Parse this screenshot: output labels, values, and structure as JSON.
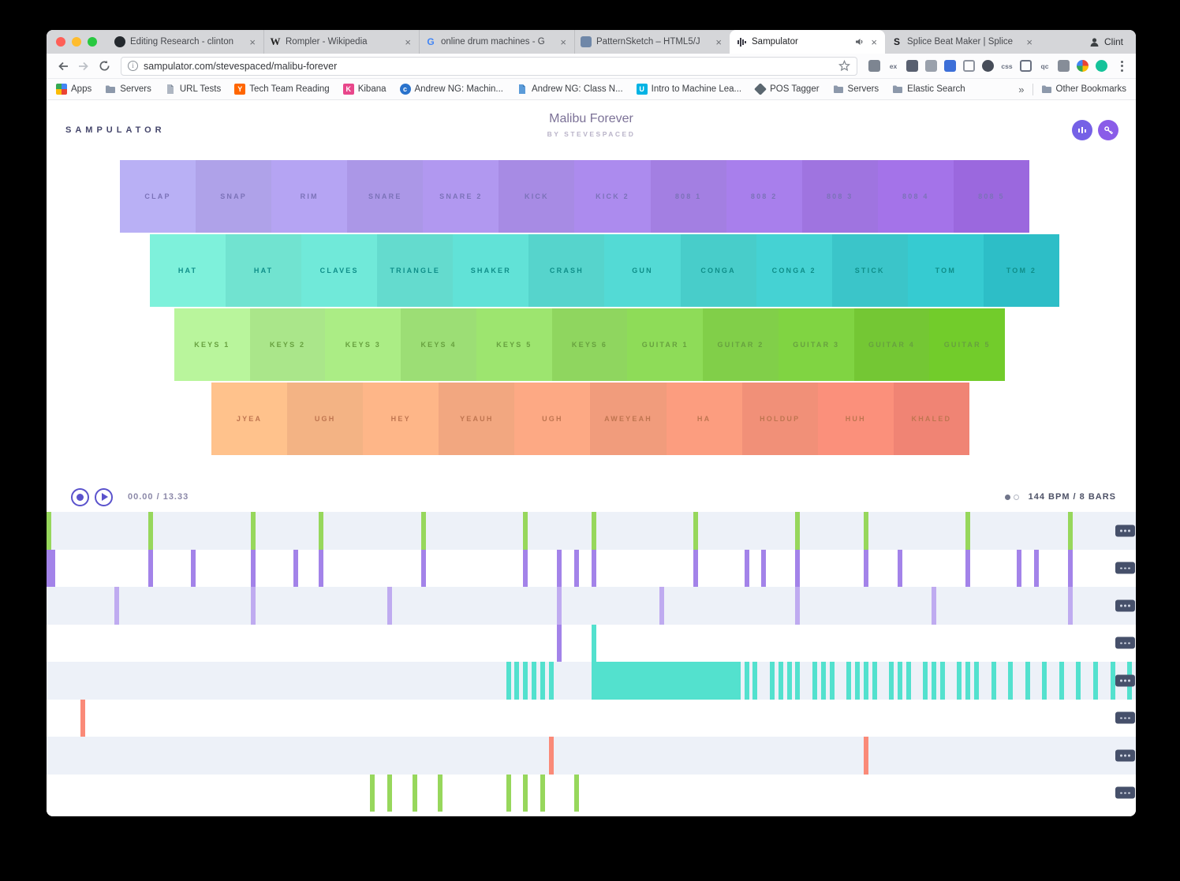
{
  "browser": {
    "profile_name": "Clint",
    "url": "sampulator.com/stevespaced/malibu-forever",
    "traffic_lights": {
      "close": "#ff5f57",
      "minimize": "#febc2e",
      "zoom": "#28c840"
    },
    "tabs": [
      {
        "title": "Editing Research - clinton",
        "favicon": "github"
      },
      {
        "title": "Rompler - Wikipedia",
        "favicon": "wikipedia"
      },
      {
        "title": "online drum machines - G",
        "favicon": "google"
      },
      {
        "title": "PatternSketch – HTML5/J",
        "favicon": "patternsketch"
      },
      {
        "title": "Sampulator",
        "favicon": "waveform",
        "active": true,
        "audio": true
      },
      {
        "title": "Splice Beat Maker | Splice",
        "favicon": "splice"
      }
    ],
    "toolbar_icons": [
      {
        "name": "tag-icon",
        "shape": "square",
        "color": "#7d8591"
      },
      {
        "name": "ex-extension-icon",
        "shape": "text",
        "color": "#697080",
        "label": "ex"
      },
      {
        "name": "camera-icon",
        "shape": "square",
        "color": "#596070"
      },
      {
        "name": "swatch-icon",
        "shape": "square",
        "color": "#9aa1ac"
      },
      {
        "name": "bookmark-flag-icon",
        "shape": "square",
        "color": "#3d6fd8"
      },
      {
        "name": "dots-grid-icon",
        "shape": "outline",
        "color": "#8d939e"
      },
      {
        "name": "contrast-icon",
        "shape": "circle",
        "color": "#474d59"
      },
      {
        "name": "css-extension-icon",
        "shape": "text",
        "color": "#697080",
        "label": "css"
      },
      {
        "name": "crop-icon",
        "shape": "outline",
        "color": "#697080"
      },
      {
        "name": "qc-extension-icon",
        "shape": "text",
        "color": "#697080",
        "label": "qc"
      },
      {
        "name": "grid-extension-icon",
        "shape": "square",
        "color": "#868d98"
      },
      {
        "name": "pie-extension-icon",
        "shape": "pie",
        "color": ""
      },
      {
        "name": "grammarly-icon",
        "shape": "circle",
        "color": "#15c39a"
      }
    ],
    "bookmarks": {
      "items": [
        {
          "label": "Apps",
          "icon": "apps"
        },
        {
          "label": "Servers",
          "icon": "folder"
        },
        {
          "label": "URL Tests",
          "icon": "page"
        },
        {
          "label": "Tech Team Reading",
          "icon": "hn"
        },
        {
          "label": "Kibana",
          "icon": "kibana"
        },
        {
          "label": "Andrew NG: Machin...",
          "icon": "coursera"
        },
        {
          "label": "Andrew NG: Class N...",
          "icon": "page-blue"
        },
        {
          "label": "Intro to Machine Lea...",
          "icon": "udacity"
        },
        {
          "label": "POS Tagger",
          "icon": "diamond"
        },
        {
          "label": "Servers",
          "icon": "folder"
        },
        {
          "label": "Elastic Search",
          "icon": "folder"
        }
      ],
      "chevron": "»",
      "other_label": "Other Bookmarks"
    }
  },
  "app": {
    "logo": "SAMPULATOR",
    "title": "Malibu Forever",
    "byline": "BY STEVESPACED",
    "accent": "#5a52cc",
    "header_buttons": {
      "equalizer_bg": "#7561e6",
      "key_bg": "#8a5ce8"
    }
  },
  "pads": {
    "rows": [
      {
        "labels": [
          "CLAP",
          "SNAP",
          "RIM",
          "SNARE",
          "SNARE 2",
          "KICK",
          "KICK 2",
          "808 1",
          "808 2",
          "808 3",
          "808 4",
          "808 5"
        ],
        "color_from": "#b9b0f5",
        "color_to": "#a26de8",
        "label_color": "#7b72b8"
      },
      {
        "labels": [
          "HAT",
          "HAT",
          "CLAVES",
          "TRIANGLE",
          "SHAKER",
          "CRASH",
          "GUN",
          "CONGA",
          "CONGA 2",
          "STICK",
          "TOM",
          "TOM 2"
        ],
        "color_from": "#7ef1db",
        "color_to": "#2fc7d0",
        "label_color": "#0f8e89"
      },
      {
        "labels": [
          "KEYS 1",
          "KEYS 2",
          "KEYS 3",
          "KEYS 4",
          "KEYS 5",
          "KEYS 6",
          "GUITAR 1",
          "GUITAR 2",
          "GUITAR 3",
          "GUITAR 4",
          "GUITAR 5"
        ],
        "color_from": "#b9f59c",
        "color_to": "#72cc2b",
        "label_color": "#67a03f"
      },
      {
        "labels": [
          "JYEA",
          "UGH",
          "HEY",
          "YEAUH",
          "UGH",
          "AWEYEAH",
          "HA",
          "HOLDUP",
          "HUH",
          "KHALED"
        ],
        "color_from": "#ffc28c",
        "color_to": "#fb8a79",
        "label_color": "#bf7550"
      }
    ]
  },
  "transport": {
    "time": "00.00 / 13.33",
    "bpm_bars": "144 BPM / 8 BARS"
  },
  "sequencer": {
    "steps_total": 128,
    "row_bg_odd": "#edf1f8",
    "row_bg_even": "#ffffff",
    "tick_colors": {
      "green": "#97d75c",
      "purple": "#a383e9",
      "lavender": "#bfabf0",
      "teal": "#53e1ce",
      "salmon": "#fa8a78"
    },
    "rows": [
      {
        "name": "track-1",
        "groups": [
          {
            "color": "green",
            "steps": [
              0,
              12,
              24,
              32,
              44,
              56,
              64,
              76,
              88,
              96,
              108,
              120
            ]
          }
        ]
      },
      {
        "name": "track-2",
        "groups": [
          {
            "color": "purple",
            "steps": [
              12,
              17,
              24,
              29,
              32,
              44,
              56,
              60,
              62,
              64,
              76,
              82,
              84,
              88,
              96,
              100,
              108,
              114,
              116,
              120
            ],
            "wide": [
              0
            ]
          }
        ]
      },
      {
        "name": "track-3",
        "groups": [
          {
            "color": "lavender",
            "steps": [
              8,
              24,
              40,
              60,
              72,
              88,
              104,
              120
            ]
          }
        ]
      },
      {
        "name": "track-4",
        "groups": [
          {
            "color": "purple",
            "steps": [
              60
            ]
          },
          {
            "color": "teal",
            "steps": [
              64
            ]
          }
        ]
      },
      {
        "name": "track-5",
        "groups": [
          {
            "color": "teal",
            "steps": [
              54,
              55,
              56,
              57,
              58,
              59,
              81,
              82,
              83,
              85,
              86,
              87,
              88,
              90,
              91,
              92,
              94,
              95,
              96,
              97,
              99,
              100,
              101,
              103,
              104,
              105,
              107,
              108,
              109,
              111,
              113,
              115,
              117,
              119,
              121,
              123,
              125,
              127
            ],
            "wide": [
              64,
              65,
              66,
              67,
              68,
              69,
              70,
              71,
              72,
              73,
              74,
              75,
              76,
              77,
              78,
              79,
              80
            ]
          }
        ]
      },
      {
        "name": "track-6",
        "groups": [
          {
            "color": "salmon",
            "steps": [
              4
            ]
          }
        ]
      },
      {
        "name": "track-7",
        "groups": [
          {
            "color": "salmon",
            "steps": [
              59,
              96
            ]
          }
        ]
      },
      {
        "name": "track-8",
        "groups": [
          {
            "color": "green",
            "steps": [
              38,
              40,
              43,
              46,
              54,
              56,
              58,
              62
            ]
          }
        ]
      }
    ]
  }
}
